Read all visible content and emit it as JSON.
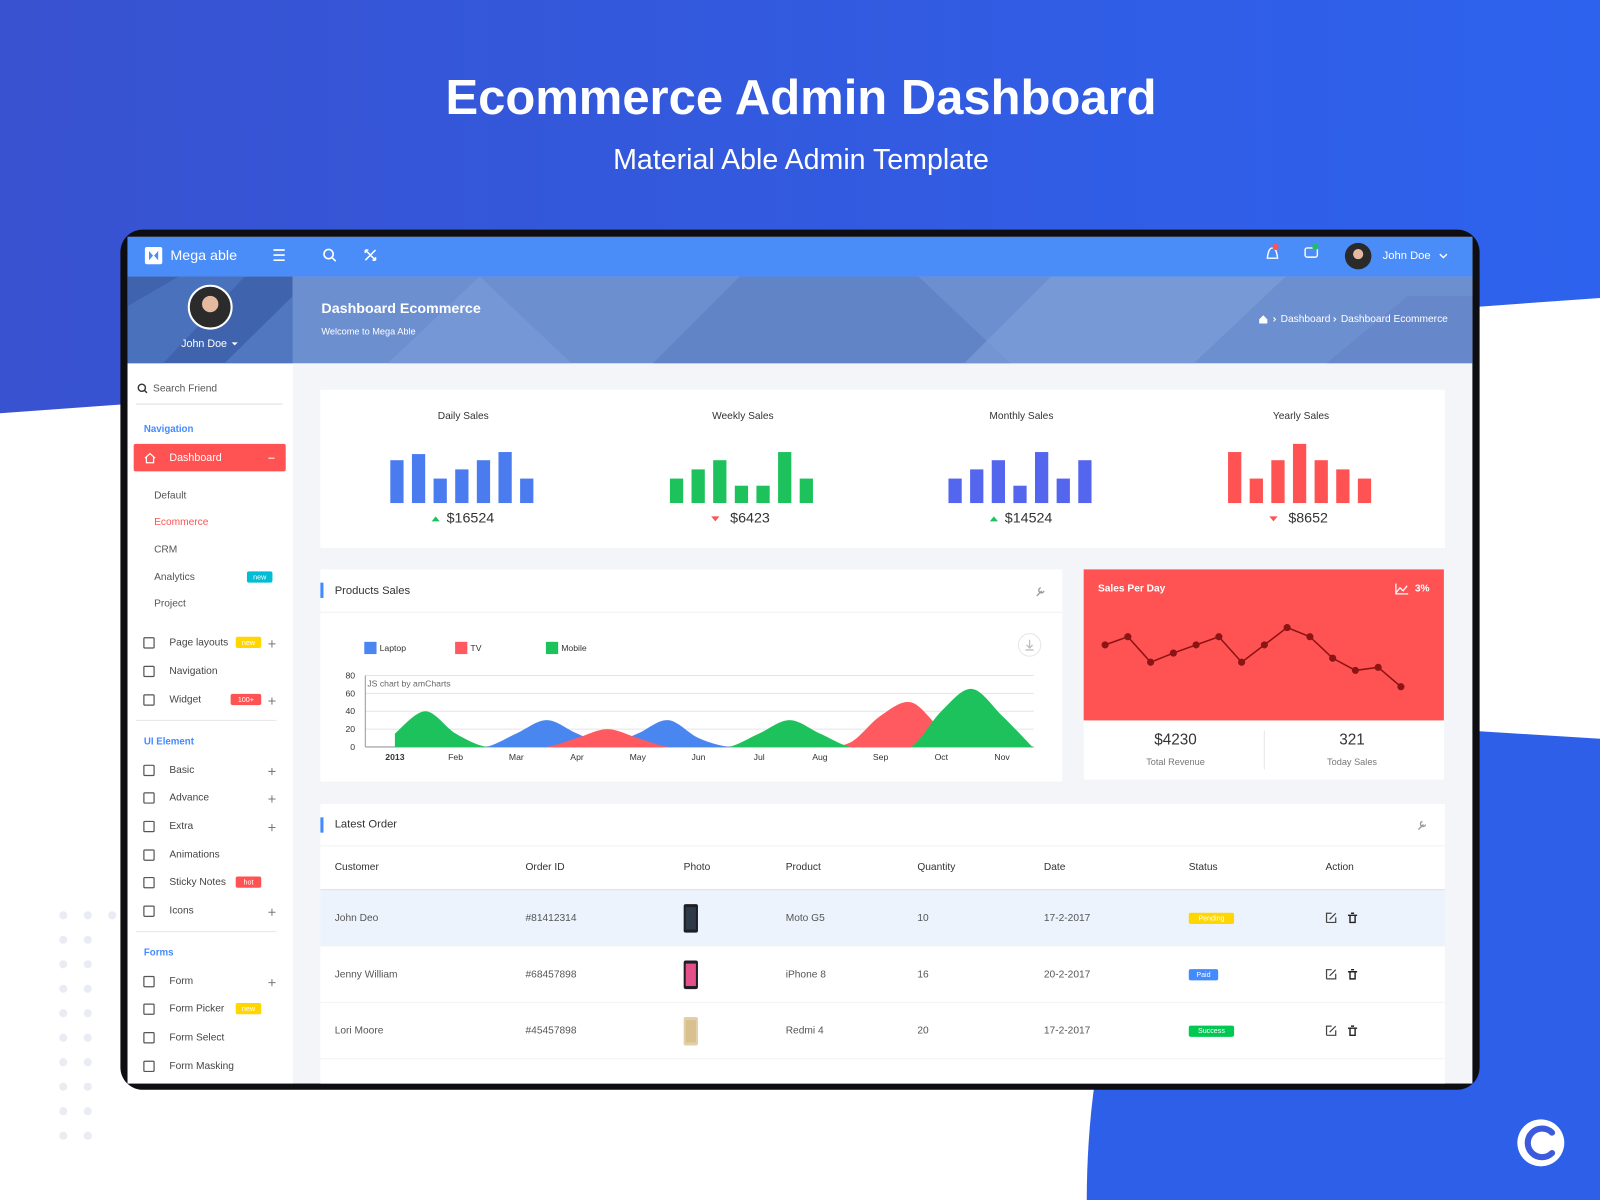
{
  "header": {
    "title": "Ecommerce Admin Dashboard",
    "subtitle": "Material Able Admin Template"
  },
  "topbar": {
    "brand": "Mega able",
    "user": "John Doe"
  },
  "sidebar": {
    "profile_name": "John Doe",
    "search": "Search Friend",
    "nav_title": "Navigation",
    "dashboard": "Dashboard",
    "dashboard_children": [
      {
        "label": "Default"
      },
      {
        "label": "Ecommerce",
        "active": true
      },
      {
        "label": "CRM"
      },
      {
        "label": "Analytics",
        "badge": "new",
        "badge_color": "#00bcd4"
      },
      {
        "label": "Project"
      }
    ],
    "groups": [
      {
        "items": [
          {
            "label": "Page layouts",
            "badge": "new",
            "badge_color": "#ffd600",
            "expand": true
          },
          {
            "label": "Navigation"
          },
          {
            "label": "Widget",
            "badge": "100+",
            "badge_color": "#ff5252",
            "expand": true
          }
        ]
      },
      {
        "title": "UI Element",
        "items": [
          {
            "label": "Basic",
            "expand": true
          },
          {
            "label": "Advance",
            "expand": true
          },
          {
            "label": "Extra",
            "expand": true
          },
          {
            "label": "Animations"
          },
          {
            "label": "Sticky Notes",
            "badge": "hot",
            "badge_color": "#ff5252"
          },
          {
            "label": "Icons",
            "expand": true
          }
        ]
      },
      {
        "title": "Forms",
        "items": [
          {
            "label": "Form",
            "expand": true
          },
          {
            "label": "Form Picker",
            "badge": "new",
            "badge_color": "#ffd600"
          },
          {
            "label": "Form Select"
          },
          {
            "label": "Form Masking"
          }
        ]
      }
    ]
  },
  "page_header": {
    "title": "Dashboard Ecommerce",
    "subtitle": "Welcome to Mega Able",
    "breadcrumb": [
      "Dashboard",
      "Dashboard Ecommerce"
    ]
  },
  "sales_cards": [
    {
      "title": "Daily Sales",
      "type": "bar",
      "color": "#4a7cf0",
      "values": [
        42,
        48,
        24,
        33,
        42,
        50,
        24
      ],
      "total": 16524,
      "total_label": "$16524",
      "trend": "up"
    },
    {
      "title": "Weekly Sales",
      "type": "bar",
      "color": "#1ec25c",
      "values": [
        24,
        33,
        42,
        17,
        17,
        50,
        24
      ],
      "total": 6423,
      "total_label": "$6423",
      "trend": "down"
    },
    {
      "title": "Monthly Sales",
      "type": "bar",
      "color": "#5566ee",
      "values": [
        24,
        33,
        42,
        17,
        50,
        24,
        42
      ],
      "total": 14524,
      "total_label": "$14524",
      "trend": "up"
    },
    {
      "title": "Yearly Sales",
      "type": "bar",
      "color": "#ff5252",
      "values": [
        50,
        24,
        42,
        58,
        42,
        33,
        24
      ],
      "total": 8652,
      "total_label": "$8652",
      "trend": "down"
    }
  ],
  "products_sales": {
    "title": "Products Sales",
    "type": "area",
    "credit": "JS chart by amCharts",
    "categories": [
      "2013",
      null,
      "Feb",
      null,
      "Mar",
      null,
      "Apr",
      null,
      "May",
      null,
      "Jun",
      null,
      "Jul",
      null,
      "Aug",
      null,
      "Sep",
      null,
      "Oct",
      null,
      "Nov",
      null
    ],
    "ylim": [
      0,
      80
    ],
    "yticks": [
      0,
      20,
      40,
      60,
      80
    ],
    "grid": true,
    "series": [
      {
        "name": "Laptop",
        "color": "#4a86f0",
        "values": [
          0,
          0,
          0,
          0,
          15,
          30,
          15,
          2,
          15,
          30,
          10,
          0,
          0,
          0,
          0,
          0,
          0,
          0,
          0,
          0,
          0,
          0
        ]
      },
      {
        "name": "TV",
        "color": "#ff5a5f",
        "values": [
          0,
          0,
          0,
          0,
          0,
          0,
          10,
          20,
          10,
          0,
          0,
          0,
          0,
          0,
          0,
          5,
          35,
          50,
          20,
          0,
          0,
          0
        ]
      },
      {
        "name": "Mobile",
        "color": "#1ec25c",
        "values": [
          15,
          40,
          15,
          0,
          0,
          0,
          0,
          0,
          0,
          0,
          0,
          0,
          15,
          30,
          15,
          0,
          0,
          0,
          40,
          65,
          35,
          0
        ]
      }
    ]
  },
  "sales_per_day": {
    "title": "Sales Per Day",
    "type": "line",
    "change": 3,
    "change_label": "3%",
    "values": [
      68,
      76,
      51,
      60,
      68,
      76,
      51,
      68,
      85,
      76,
      55,
      43,
      46,
      27
    ],
    "stats": [
      {
        "value": 4230,
        "value_label": "$4230",
        "label": "Total Revenue"
      },
      {
        "value": 321,
        "label": "Today Sales"
      }
    ]
  },
  "latest_order": {
    "title": "Latest Order",
    "columns": [
      "Customer",
      "Order ID",
      "Photo",
      "Product",
      "Quantity",
      "Date",
      "Status",
      "Action"
    ],
    "rows": [
      {
        "customer": "John Deo",
        "order_id": "#81412314",
        "product": "Moto G5",
        "quantity": 10,
        "date": "17-2-2017",
        "status": "Pending",
        "status_color": "#ffd600"
      },
      {
        "customer": "Jenny William",
        "order_id": "#68457898",
        "product": "iPhone 8",
        "quantity": 16,
        "date": "20-2-2017",
        "status": "Paid",
        "status_color": "#448aff"
      },
      {
        "customer": "Lori Moore",
        "order_id": "#45457898",
        "product": "Redmi 4",
        "quantity": 20,
        "date": "17-2-2017",
        "status": "Success",
        "status_color": "#00c853"
      }
    ]
  }
}
